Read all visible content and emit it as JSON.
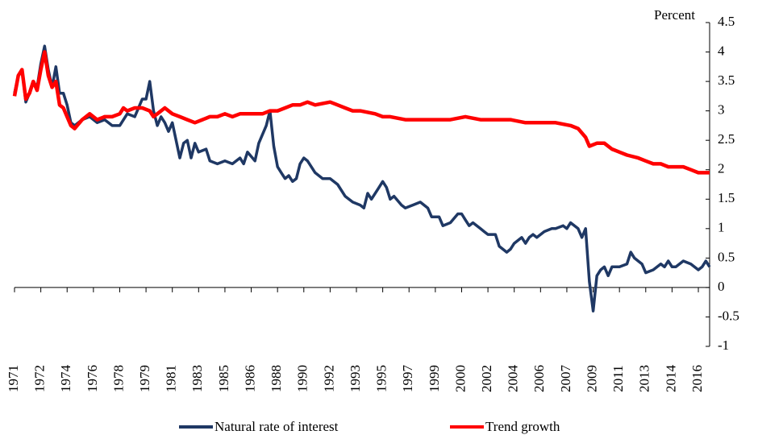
{
  "chart_data": {
    "type": "line",
    "y_label": "Percent",
    "xlim": [
      1971,
      2017.25
    ],
    "xticks": [
      {
        "value": 1971,
        "label": "1971"
      },
      {
        "value": 1972.75,
        "label": "1972"
      },
      {
        "value": 1974.5,
        "label": "1974"
      },
      {
        "value": 1976.25,
        "label": "1976"
      },
      {
        "value": 1978,
        "label": "1978"
      },
      {
        "value": 1979.75,
        "label": "1979"
      },
      {
        "value": 1981.5,
        "label": "1981"
      },
      {
        "value": 1983.25,
        "label": "1983"
      },
      {
        "value": 1985,
        "label": "1985"
      },
      {
        "value": 1986.75,
        "label": "1986"
      },
      {
        "value": 1988.5,
        "label": "1988"
      },
      {
        "value": 1990.25,
        "label": "1990"
      },
      {
        "value": 1992,
        "label": "1992"
      },
      {
        "value": 1993.75,
        "label": "1993"
      },
      {
        "value": 1995.5,
        "label": "1995"
      },
      {
        "value": 1997.25,
        "label": "1997"
      },
      {
        "value": 1999,
        "label": "1999"
      },
      {
        "value": 2000.75,
        "label": "2000"
      },
      {
        "value": 2002.5,
        "label": "2002"
      },
      {
        "value": 2004.25,
        "label": "2004"
      },
      {
        "value": 2006,
        "label": "2006"
      },
      {
        "value": 2007.75,
        "label": "2007"
      },
      {
        "value": 2009.5,
        "label": "2009"
      },
      {
        "value": 2011.25,
        "label": "2011"
      },
      {
        "value": 2013,
        "label": "2013"
      },
      {
        "value": 2014.75,
        "label": "2014"
      },
      {
        "value": 2016.5,
        "label": "2016"
      }
    ],
    "ylim": [
      -1,
      4.5
    ],
    "yticks": [
      -1,
      -0.5,
      0,
      0.5,
      1,
      1.5,
      2,
      2.5,
      3,
      3.5,
      4,
      4.5
    ],
    "series": [
      {
        "name": "Natural rate of interest",
        "color": "#1f3864",
        "x": [
          1971.0,
          1971.25,
          1971.5,
          1971.75,
          1972.0,
          1972.25,
          1972.5,
          1972.75,
          1973.0,
          1973.25,
          1973.5,
          1973.75,
          1974.0,
          1974.25,
          1974.5,
          1974.75,
          1975.0,
          1975.5,
          1976.0,
          1976.5,
          1977.0,
          1977.5,
          1978.0,
          1978.5,
          1979.0,
          1979.5,
          1979.75,
          1980.0,
          1980.25,
          1980.5,
          1980.75,
          1981.0,
          1981.25,
          1981.5,
          1982.0,
          1982.25,
          1982.5,
          1982.75,
          1983.0,
          1983.25,
          1983.75,
          1984.0,
          1984.5,
          1985.0,
          1985.5,
          1986.0,
          1986.25,
          1986.5,
          1987.0,
          1987.25,
          1987.75,
          1988.0,
          1988.25,
          1988.5,
          1988.75,
          1989.0,
          1989.25,
          1989.5,
          1989.75,
          1990.0,
          1990.25,
          1990.5,
          1991.0,
          1991.5,
          1992.0,
          1992.5,
          1993.0,
          1993.5,
          1994.0,
          1994.25,
          1994.5,
          1994.75,
          1995.25,
          1995.5,
          1995.75,
          1996.0,
          1996.25,
          1996.75,
          1997.0,
          1997.5,
          1998.0,
          1998.5,
          1998.75,
          1999.25,
          1999.5,
          2000.0,
          2000.5,
          2000.75,
          2001.0,
          2001.25,
          2001.5,
          2002.0,
          2002.25,
          2002.5,
          2003.0,
          2003.25,
          2003.5,
          2003.75,
          2004.0,
          2004.25,
          2004.75,
          2005.0,
          2005.25,
          2005.5,
          2005.75,
          2006.25,
          2006.75,
          2007.0,
          2007.5,
          2007.75,
          2008.0,
          2008.5,
          2008.75,
          2009.0,
          2009.25,
          2009.5,
          2009.75,
          2010.0,
          2010.25,
          2010.5,
          2010.75,
          2011.25,
          2011.75,
          2012.0,
          2012.25,
          2012.75,
          2013.0,
          2013.5,
          2014.0,
          2014.25,
          2014.5,
          2014.75,
          2015.0,
          2015.5,
          2016.0,
          2016.5,
          2016.75,
          2017.0,
          2017.25
        ],
        "values": [
          3.3,
          3.6,
          3.7,
          3.15,
          3.3,
          3.5,
          3.4,
          3.8,
          4.1,
          3.7,
          3.4,
          3.75,
          3.3,
          3.3,
          3.1,
          2.8,
          2.75,
          2.85,
          2.9,
          2.8,
          2.85,
          2.75,
          2.75,
          2.95,
          2.9,
          3.2,
          3.2,
          3.5,
          3.0,
          2.75,
          2.9,
          2.8,
          2.65,
          2.8,
          2.2,
          2.45,
          2.5,
          2.2,
          2.45,
          2.3,
          2.35,
          2.15,
          2.1,
          2.15,
          2.1,
          2.2,
          2.1,
          2.3,
          2.15,
          2.45,
          2.75,
          3.0,
          2.4,
          2.05,
          1.95,
          1.85,
          1.9,
          1.8,
          1.85,
          2.1,
          2.2,
          2.15,
          1.95,
          1.85,
          1.85,
          1.75,
          1.55,
          1.45,
          1.4,
          1.35,
          1.6,
          1.5,
          1.7,
          1.8,
          1.7,
          1.5,
          1.55,
          1.4,
          1.35,
          1.4,
          1.45,
          1.35,
          1.2,
          1.2,
          1.05,
          1.1,
          1.25,
          1.25,
          1.15,
          1.05,
          1.1,
          1.0,
          0.95,
          0.9,
          0.9,
          0.7,
          0.65,
          0.6,
          0.65,
          0.75,
          0.85,
          0.75,
          0.85,
          0.9,
          0.85,
          0.95,
          1.0,
          1.0,
          1.05,
          1.0,
          1.1,
          1.0,
          0.85,
          1.0,
          0.1,
          -0.4,
          0.2,
          0.3,
          0.35,
          0.2,
          0.35,
          0.35,
          0.4,
          0.6,
          0.5,
          0.4,
          0.25,
          0.3,
          0.4,
          0.35,
          0.45,
          0.35,
          0.35,
          0.45,
          0.4,
          0.3,
          0.35,
          0.45,
          0.35
        ]
      },
      {
        "name": "Trend growth",
        "color": "#ff0000",
        "x": [
          1971.0,
          1971.25,
          1971.5,
          1971.75,
          1972.0,
          1972.25,
          1972.5,
          1972.75,
          1973.0,
          1973.25,
          1973.5,
          1973.75,
          1974.0,
          1974.25,
          1974.5,
          1974.75,
          1975.0,
          1975.5,
          1976.0,
          1976.5,
          1977.0,
          1977.5,
          1978.0,
          1978.25,
          1978.5,
          1979.0,
          1979.5,
          1980.0,
          1980.25,
          1980.5,
          1981.0,
          1981.5,
          1982.0,
          1982.5,
          1983.0,
          1983.5,
          1984.0,
          1984.5,
          1985.0,
          1985.5,
          1986.0,
          1987.0,
          1987.5,
          1988.0,
          1988.5,
          1989.0,
          1989.5,
          1990.0,
          1990.5,
          1991.0,
          1992.0,
          1992.5,
          1993.0,
          1993.5,
          1994.0,
          1995.0,
          1995.5,
          1996.0,
          1997.0,
          1998.0,
          1999.0,
          2000.0,
          2001.0,
          2002.0,
          2003.0,
          2004.0,
          2005.0,
          2006.0,
          2007.0,
          2008.0,
          2008.5,
          2009.0,
          2009.25,
          2009.75,
          2010.25,
          2010.75,
          2011.25,
          2011.75,
          2012.5,
          2013.0,
          2013.5,
          2014.0,
          2014.5,
          2015.0,
          2015.5,
          2016.0,
          2016.5,
          2017.25
        ],
        "values": [
          3.25,
          3.6,
          3.7,
          3.2,
          3.3,
          3.5,
          3.35,
          3.7,
          4.0,
          3.6,
          3.4,
          3.5,
          3.1,
          3.05,
          2.9,
          2.75,
          2.7,
          2.85,
          2.95,
          2.85,
          2.9,
          2.9,
          2.95,
          3.05,
          3.0,
          3.05,
          3.05,
          3.0,
          2.9,
          2.95,
          3.05,
          2.95,
          2.9,
          2.85,
          2.8,
          2.85,
          2.9,
          2.9,
          2.95,
          2.9,
          2.95,
          2.95,
          2.95,
          3.0,
          3.0,
          3.05,
          3.1,
          3.1,
          3.15,
          3.1,
          3.15,
          3.1,
          3.05,
          3.0,
          3.0,
          2.95,
          2.9,
          2.9,
          2.85,
          2.85,
          2.85,
          2.85,
          2.9,
          2.85,
          2.85,
          2.85,
          2.8,
          2.8,
          2.8,
          2.75,
          2.7,
          2.55,
          2.4,
          2.45,
          2.45,
          2.35,
          2.3,
          2.25,
          2.2,
          2.15,
          2.1,
          2.1,
          2.05,
          2.05,
          2.05,
          2.0,
          1.95,
          1.95
        ]
      }
    ]
  }
}
